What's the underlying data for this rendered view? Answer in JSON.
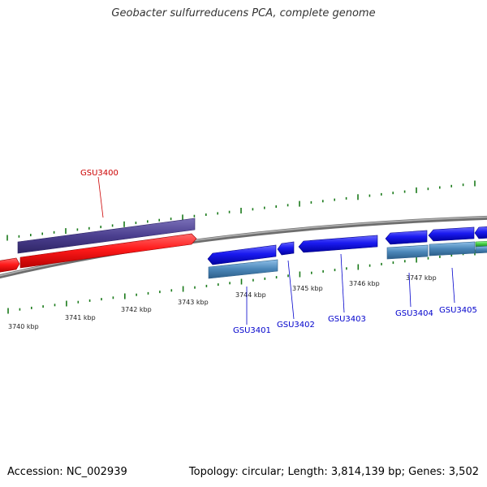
{
  "title": "Geobacter sulfurreducens PCA, complete genome",
  "footer": {
    "accession": "Accession: NC_002939",
    "stats": "Topology: circular; Length: 3,814,139 bp; Genes: 3,502"
  },
  "ruler": {
    "labels": [
      "3740 kbp",
      "3741 kbp",
      "3742 kbp",
      "3743 kbp",
      "3744 kbp",
      "3745 kbp",
      "3746 kbp",
      "3747 kbp"
    ]
  },
  "genes": [
    {
      "name": "GSU3400",
      "color": "#cc0000"
    },
    {
      "name": "GSU3401",
      "color": "#0000cc"
    },
    {
      "name": "GSU3402",
      "color": "#0000cc"
    },
    {
      "name": "GSU3403",
      "color": "#0000cc"
    },
    {
      "name": "GSU3404",
      "color": "#0000cc"
    },
    {
      "name": "GSU3405",
      "color": "#0000cc"
    }
  ],
  "colors": {
    "forward_cds": "#ff1010",
    "reverse_cds": "#1414ee",
    "forward_feature": "#4b3f8f",
    "reverse_feature": "#4a86b8",
    "backbone": "#8c8c8c",
    "ticks": "#1a7a1a",
    "misc": "#44cc44"
  }
}
